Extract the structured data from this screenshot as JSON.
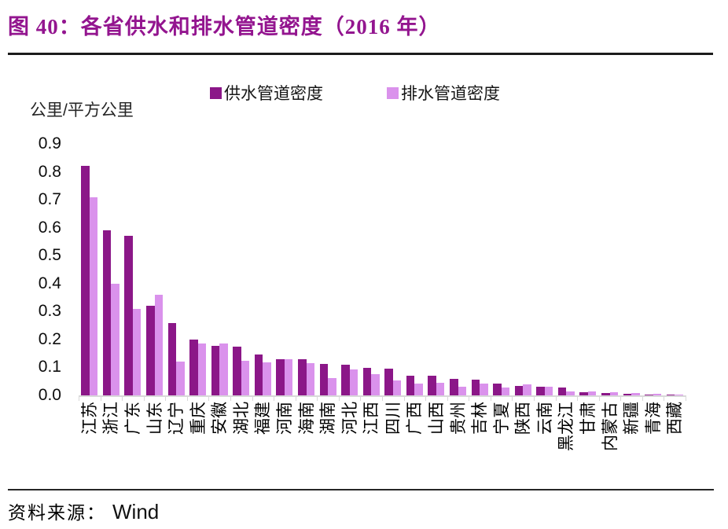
{
  "title": "图 40：各省供水和排水管道密度（2016 年）",
  "source": {
    "label": "资料来源：",
    "value": "Wind"
  },
  "colors": {
    "title": "#93158F",
    "supply": "#8B1788",
    "drain": "#DA92EC",
    "axis": "#D9D9D9",
    "rule": "#1C1C1C"
  },
  "chart_data": {
    "type": "bar",
    "title": "各省供水和排水管道密度（2016 年）",
    "unit_label": "公里/平方公里",
    "ylabel": "公里/平方公里",
    "xlabel": "",
    "ylim": [
      0,
      0.9
    ],
    "yticks": [
      0.0,
      0.1,
      0.2,
      0.3,
      0.4,
      0.5,
      0.6,
      0.7,
      0.8,
      0.9
    ],
    "grid": false,
    "legend_position": "top",
    "categories": [
      "江苏",
      "浙江",
      "广东",
      "山东",
      "辽宁",
      "重庆",
      "安徽",
      "湖北",
      "福建",
      "河南",
      "海南",
      "湖南",
      "河北",
      "江西",
      "四川",
      "广西",
      "山西",
      "贵州",
      "吉林",
      "宁夏",
      "陕西",
      "云南",
      "黑龙江",
      "甘肃",
      "内蒙古",
      "新疆",
      "青海",
      "西藏"
    ],
    "series": [
      {
        "name": "供水管道密度",
        "color_key": "supply",
        "values": [
          0.82,
          0.59,
          0.57,
          0.32,
          0.26,
          0.2,
          0.178,
          0.174,
          0.146,
          0.129,
          0.128,
          0.113,
          0.109,
          0.098,
          0.095,
          0.071,
          0.069,
          0.06,
          0.055,
          0.043,
          0.035,
          0.03,
          0.027,
          0.011,
          0.008,
          0.006,
          0.003,
          0.002
        ]
      },
      {
        "name": "排水管道密度",
        "color_key": "drain",
        "values": [
          0.71,
          0.4,
          0.31,
          0.36,
          0.12,
          0.185,
          0.187,
          0.124,
          0.119,
          0.128,
          0.115,
          0.061,
          0.094,
          0.075,
          0.053,
          0.043,
          0.046,
          0.032,
          0.041,
          0.027,
          0.04,
          0.032,
          0.015,
          0.015,
          0.011,
          0.008,
          0.006,
          0.004
        ]
      }
    ]
  }
}
